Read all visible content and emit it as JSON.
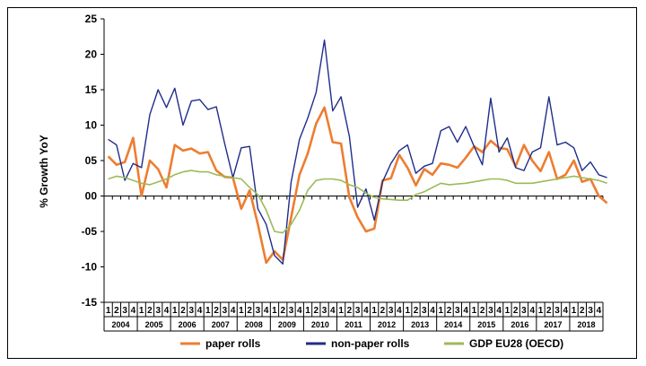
{
  "chart_data": {
    "type": "line",
    "title": "",
    "xlabel": "",
    "ylabel": "% Growth YoY",
    "ylim": [
      -15,
      25
    ],
    "yticks": [
      "25",
      "20",
      "15",
      "10",
      "05",
      "00",
      "-05",
      "-10",
      "-15"
    ],
    "ytick_values": [
      25,
      20,
      15,
      10,
      5,
      0,
      -5,
      -10,
      -15
    ],
    "grid": false,
    "legend_position": "bottom",
    "quarter_labels": [
      "1",
      "2",
      "3",
      "4"
    ],
    "years": [
      "2004",
      "2005",
      "2006",
      "2007",
      "2008",
      "2009",
      "2010",
      "2011",
      "2012",
      "2013",
      "2014",
      "2015",
      "2016",
      "2017",
      "2018"
    ],
    "series": [
      {
        "name": "paper rolls",
        "color": "#ed7d31",
        "values": [
          5.6,
          4.4,
          4.8,
          8.2,
          0.0,
          5.0,
          3.8,
          1.2,
          7.2,
          6.4,
          6.7,
          6.0,
          6.2,
          3.6,
          2.7,
          2.6,
          -1.8,
          0.8,
          -4.0,
          -9.4,
          -7.8,
          -9.0,
          -3.0,
          3.0,
          6.0,
          10.2,
          12.5,
          7.6,
          7.4,
          -0.2,
          -3.0,
          -5.0,
          -4.6,
          2.2,
          2.5,
          5.8,
          4.0,
          1.5,
          3.8,
          3.0,
          4.6,
          4.4,
          4.0,
          5.4,
          7.0,
          6.2,
          7.8,
          6.8,
          6.6,
          4.2,
          7.2,
          5.0,
          3.5,
          6.2,
          2.4,
          3.0,
          5.0,
          2.0,
          2.4,
          0.0,
          -1.0
        ]
      },
      {
        "name": "non-paper rolls",
        "color": "#1f2d8a",
        "values": [
          8.0,
          7.2,
          2.2,
          4.6,
          4.0,
          11.5,
          15.0,
          12.5,
          15.2,
          10.0,
          13.4,
          13.6,
          12.2,
          12.6,
          7.4,
          2.6,
          6.8,
          7.0,
          -1.8,
          -4.0,
          -8.4,
          -9.6,
          2.0,
          8.0,
          11.0,
          14.6,
          22.0,
          12.0,
          14.0,
          8.4,
          -1.6,
          1.0,
          -3.4,
          2.0,
          4.6,
          6.4,
          7.2,
          3.2,
          4.2,
          4.6,
          9.2,
          9.8,
          7.6,
          9.8,
          7.0,
          4.4,
          13.8,
          6.2,
          8.2,
          4.0,
          3.6,
          6.2,
          6.8,
          14.0,
          7.2,
          7.6,
          6.8,
          3.6,
          4.8,
          3.0,
          2.6
        ]
      },
      {
        "name": "GDP EU28 (OECD)",
        "color": "#9bbb59",
        "values": [
          2.4,
          2.8,
          2.6,
          2.2,
          1.8,
          1.6,
          2.0,
          2.4,
          3.0,
          3.4,
          3.6,
          3.4,
          3.4,
          3.0,
          2.8,
          2.6,
          2.4,
          1.2,
          0.2,
          -2.0,
          -5.0,
          -5.2,
          -4.0,
          -2.0,
          0.8,
          2.2,
          2.4,
          2.4,
          2.2,
          1.6,
          1.2,
          0.4,
          -0.2,
          -0.4,
          -0.5,
          -0.6,
          -0.6,
          0.2,
          0.6,
          1.2,
          1.8,
          1.6,
          1.7,
          1.8,
          2.0,
          2.2,
          2.4,
          2.4,
          2.2,
          1.8,
          1.8,
          1.8,
          2.0,
          2.2,
          2.4,
          2.6,
          2.8,
          2.6,
          2.4,
          2.2,
          1.8
        ]
      }
    ]
  }
}
